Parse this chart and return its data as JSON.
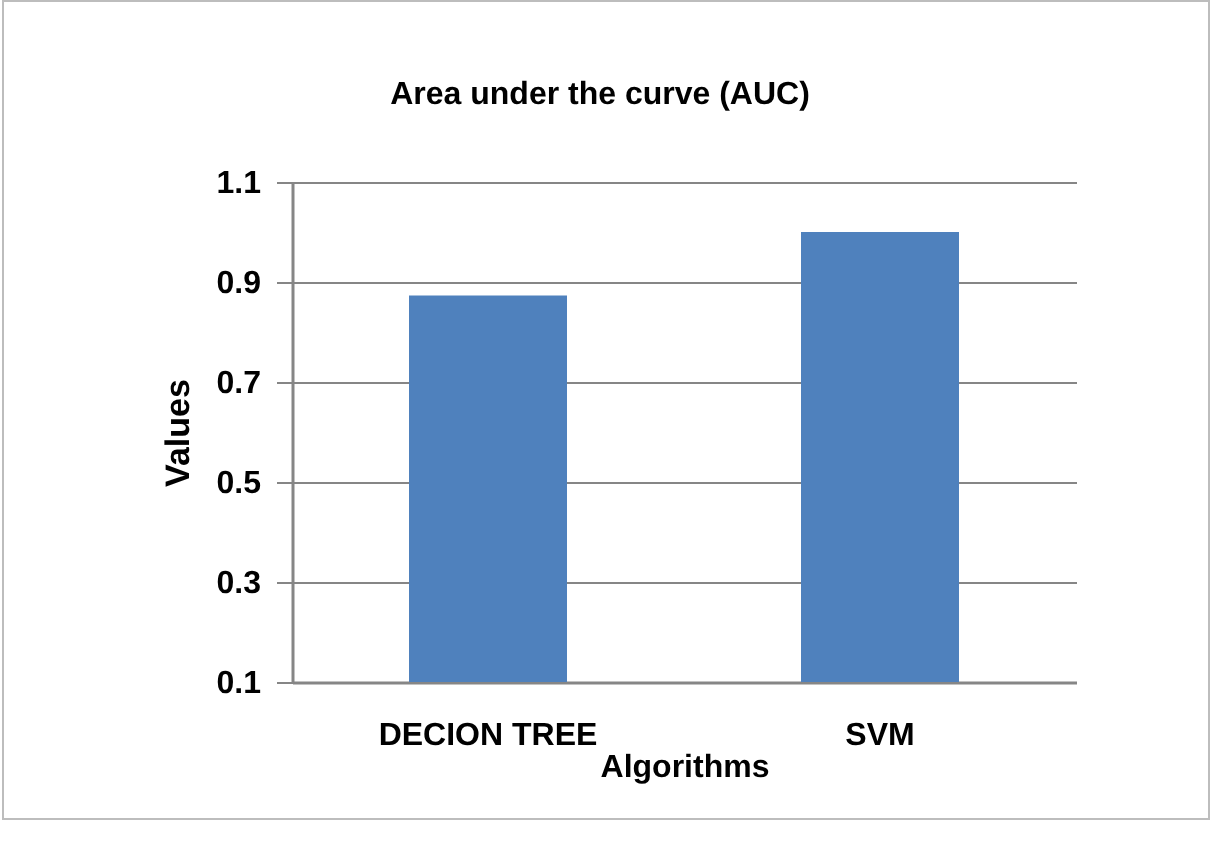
{
  "chart_data": {
    "type": "bar",
    "title": "Area under the curve (AUC)",
    "xlabel": "Algorithms",
    "ylabel": "Values",
    "categories": [
      "DECION TREE",
      "SVM"
    ],
    "values": [
      0.873,
      1.0
    ],
    "color": "#4f81bd",
    "ylim": [
      0.1,
      1.1
    ],
    "yticks": [
      0.1,
      0.3,
      0.5,
      0.7,
      0.9,
      1.1
    ],
    "grid": "y"
  }
}
